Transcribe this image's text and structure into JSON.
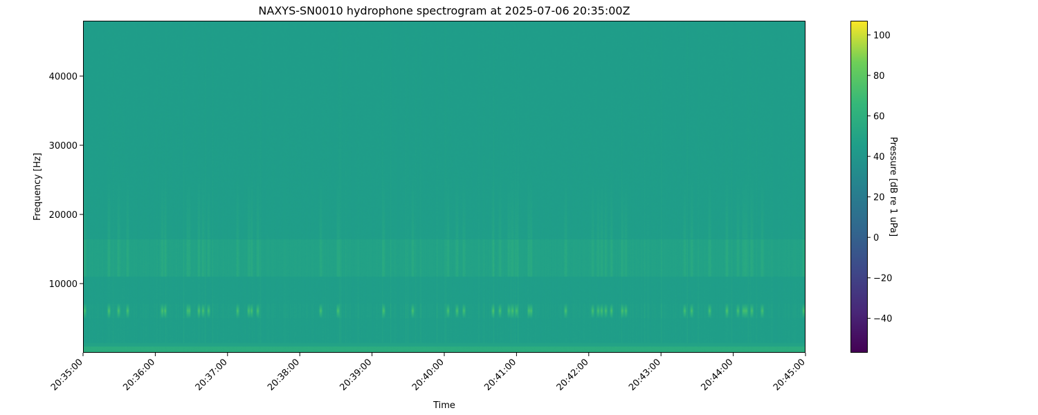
{
  "chart_data": {
    "type": "heatmap",
    "title": "NAXYS-SN0010 hydrophone spectrogram at 2025-07-06 20:35:00Z",
    "xlabel": "Time",
    "ylabel": "Frequency [Hz]",
    "xlim": [
      "20:35:00",
      "20:45:00"
    ],
    "ylim": [
      0,
      48000
    ],
    "x_ticks": [
      "20:35:00",
      "20:36:00",
      "20:37:00",
      "20:38:00",
      "20:39:00",
      "20:40:00",
      "20:41:00",
      "20:42:00",
      "20:43:00",
      "20:44:00",
      "20:45:00"
    ],
    "y_ticks": [
      10000,
      20000,
      30000,
      40000
    ],
    "colormap": "viridis",
    "colorbar": {
      "label": "Pressure [dB re 1 uPa]",
      "range": [
        -57,
        107
      ],
      "ticks": [
        -40,
        -20,
        0,
        20,
        40,
        60,
        80,
        100
      ]
    },
    "approx_levels_db": {
      "background": 45,
      "low_band_0_1000_hz": 58,
      "band_6000_hz_peaks": 75,
      "band_12000_16000_hz": 50
    }
  }
}
